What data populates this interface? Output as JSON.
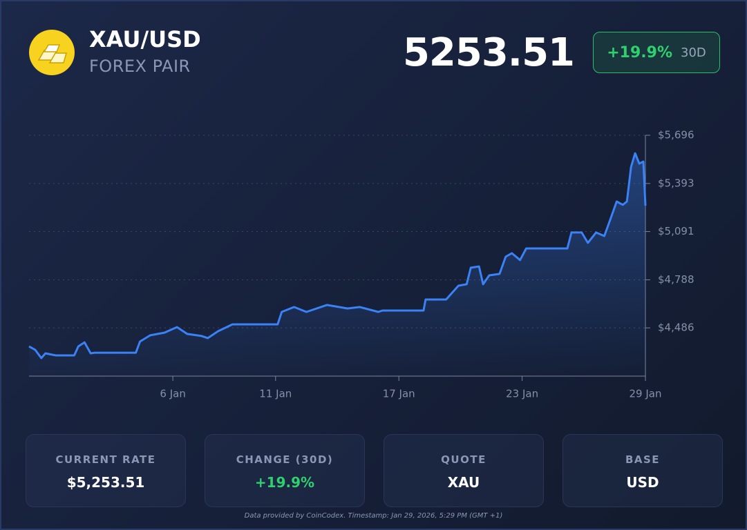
{
  "header": {
    "title": "XAU/USD",
    "subtitle": "FOREX PAIR",
    "price": "5253.51",
    "change": "+19.9%",
    "period": "30D"
  },
  "chart_data": {
    "type": "line",
    "color": "#3b82f6",
    "x": [
      -1,
      -0.7,
      -0.4,
      -0.2,
      0.3,
      1.2,
      1.4,
      1.7,
      2.0,
      2.2,
      4.2,
      4.4,
      4.9,
      5.6,
      6.2,
      6.7,
      7.4,
      7.7,
      8.2,
      8.9,
      11.1,
      11.3,
      11.9,
      12.5,
      13.5,
      14.5,
      15.1,
      16.0,
      16.2,
      18.2,
      18.3,
      19.3,
      19.9,
      20.3,
      20.5,
      20.9,
      21.1,
      21.4,
      21.9,
      22.2,
      22.5,
      22.9,
      23.2,
      25.2,
      25.4,
      25.9,
      26.2,
      26.6,
      27.0,
      27.3,
      27.6,
      27.9,
      28.1,
      28.3,
      28.5,
      28.7,
      28.9,
      29.0
    ],
    "values": [
      4370,
      4348,
      4296,
      4326,
      4313,
      4313,
      4370,
      4395,
      4326,
      4330,
      4330,
      4400,
      4439,
      4456,
      4491,
      4448,
      4435,
      4422,
      4465,
      4508,
      4508,
      4586,
      4617,
      4586,
      4630,
      4608,
      4617,
      4586,
      4595,
      4595,
      4664,
      4664,
      4751,
      4760,
      4864,
      4872,
      4760,
      4816,
      4825,
      4933,
      4955,
      4912,
      4985,
      4985,
      5085,
      5085,
      5020,
      5085,
      5063,
      5171,
      5280,
      5259,
      5280,
      5497,
      5583,
      5518,
      5531,
      5253.51
    ],
    "xlim": [
      -1,
      29
    ],
    "xticks": [
      {
        "value": 6,
        "label": "6 Jan"
      },
      {
        "value": 11,
        "label": "11 Jan"
      },
      {
        "value": 17,
        "label": "17 Jan"
      },
      {
        "value": 23,
        "label": "23 Jan"
      },
      {
        "value": 29,
        "label": "29 Jan"
      }
    ],
    "ylim": [
      4183,
      5696
    ],
    "yticks": [
      {
        "value": 4486,
        "label": "$4,486"
      },
      {
        "value": 4788,
        "label": "$4,788"
      },
      {
        "value": 5091,
        "label": "$5,091"
      },
      {
        "value": 5393,
        "label": "$5,393"
      },
      {
        "value": 5696,
        "label": "$5,696"
      }
    ],
    "grid": true
  },
  "stats": [
    {
      "label": "CURRENT RATE",
      "value": "$5,253.51"
    },
    {
      "label": "CHANGE (30D)",
      "value": "+19.9%"
    },
    {
      "label": "QUOTE",
      "value": "XAU"
    },
    {
      "label": "BASE",
      "value": "USD"
    }
  ],
  "footer": "Data provided by CoinCodex. Timestamp: Jan 29, 2026, 5:29 PM (GMT +1)"
}
